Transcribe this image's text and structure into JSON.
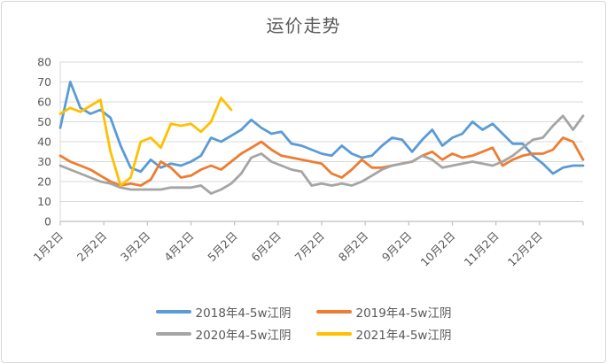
{
  "chart_data": {
    "type": "line",
    "title": "运价走势",
    "x_axis": {
      "categories": [
        "1月2日",
        "2月2日",
        "3月2日",
        "4月2日",
        "5月2日",
        "6月2日",
        "7月2日",
        "8月2日",
        "9月2日",
        "10月2日",
        "11月2日",
        "12月2日"
      ],
      "label_rotation_deg": -45,
      "points_per_series_span_weeks": 52
    },
    "y_axis": {
      "min": 0,
      "max": 80,
      "tick_step": 10,
      "ticks": [
        0,
        10,
        20,
        30,
        40,
        50,
        60,
        70,
        80
      ]
    },
    "grid": true,
    "legend_position": "bottom",
    "colors": {
      "grid_line": "#d9d9d9",
      "axis_line": "#bfbfbf",
      "text": "#595959"
    },
    "series": [
      {
        "name": "2018年4-5w江阴",
        "color": "#5B9BD5",
        "values": [
          47,
          70,
          57,
          54,
          56,
          52,
          38,
          27,
          25,
          31,
          27,
          29,
          28,
          30,
          33,
          42,
          40,
          43,
          46,
          51,
          47,
          44,
          45,
          39,
          38,
          36,
          34,
          33,
          38,
          34,
          32,
          33,
          38,
          42,
          41,
          35,
          41,
          46,
          38,
          42,
          44,
          50,
          46,
          49,
          44,
          39,
          39,
          33,
          29,
          24,
          27,
          28,
          28
        ]
      },
      {
        "name": "2019年4-5w江阴",
        "color": "#ED7D31",
        "values": [
          33,
          30,
          28,
          26,
          23,
          20,
          18,
          19,
          18,
          21,
          30,
          27,
          22,
          23,
          26,
          28,
          26,
          30,
          34,
          37,
          40,
          36,
          33,
          32,
          31,
          30,
          29,
          24,
          22,
          26,
          31,
          27,
          27,
          28,
          29,
          30,
          33,
          35,
          31,
          34,
          32,
          33,
          35,
          37,
          28,
          31,
          33,
          34,
          34,
          36,
          42,
          40,
          31
        ]
      },
      {
        "name": "2020年4-5w江阴",
        "color": "#A5A5A5",
        "values": [
          28,
          26,
          24,
          22,
          20,
          19,
          17,
          16,
          16,
          16,
          16,
          17,
          17,
          17,
          18,
          14,
          16,
          19,
          24,
          32,
          34,
          30,
          28,
          26,
          25,
          18,
          19,
          18,
          19,
          18,
          20,
          23,
          26,
          28,
          29,
          30,
          33,
          31,
          27,
          28,
          29,
          30,
          29,
          28,
          30,
          33,
          37,
          41,
          42,
          48,
          53,
          46,
          53
        ]
      },
      {
        "name": "2021年4-5w江阴",
        "color": "#FFC000",
        "values": [
          54,
          57,
          55,
          58,
          61,
          35,
          18,
          22,
          40,
          42,
          37,
          49,
          48,
          49,
          45,
          50,
          62,
          56
        ]
      }
    ]
  }
}
